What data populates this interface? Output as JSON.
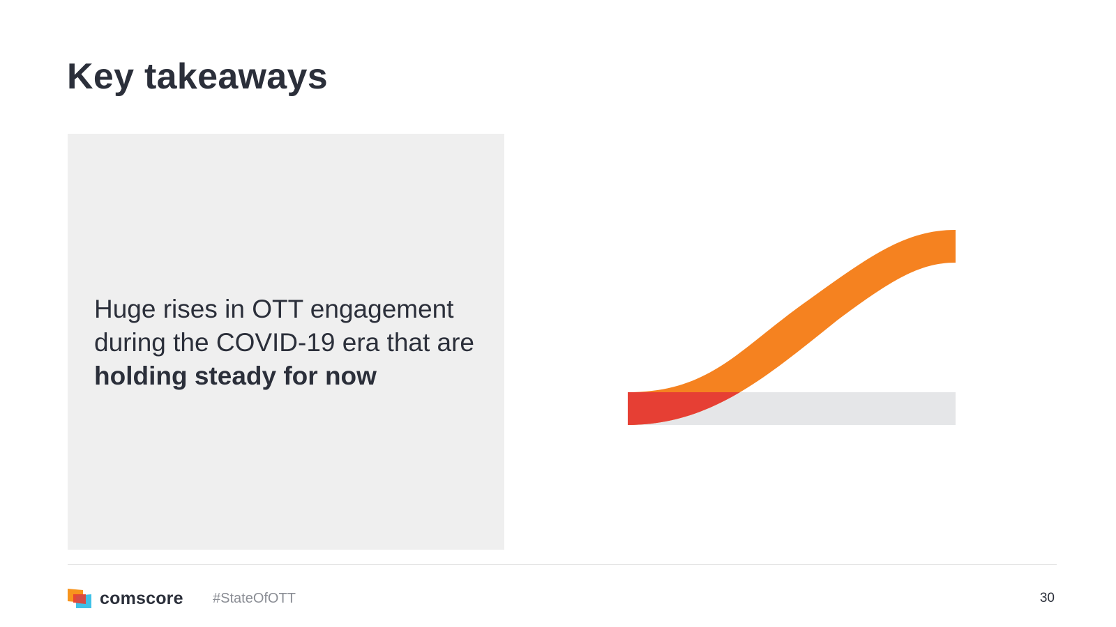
{
  "slide": {
    "title": "Key takeaways",
    "takeaway": {
      "text_regular": "Huge rises in OTT engagement during the COVID-19 era that are ",
      "text_bold": "holding steady for now"
    }
  },
  "graphic": {
    "colors": {
      "baseline": "#e5e6e8",
      "curve": "#f58220",
      "overlap": "#e63f34"
    }
  },
  "footer": {
    "brand_name": "comscore",
    "hashtag": "#StateOfOTT",
    "page_number": "30",
    "logo_colors": [
      "#f7941d",
      "#e63f34",
      "#3fc1e8"
    ]
  }
}
